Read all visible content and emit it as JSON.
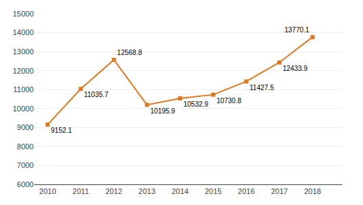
{
  "chart_data": {
    "type": "line",
    "x": [
      2010,
      2011,
      2012,
      2013,
      2014,
      2015,
      2016,
      2017,
      2018
    ],
    "values": [
      9152.1,
      11035.7,
      12568.8,
      10195.9,
      10532.9,
      10730.8,
      11427.5,
      12433.9,
      13770.1
    ],
    "color": "#E07820",
    "marker": "square",
    "xlim": [
      2009.6,
      2018.9
    ],
    "xticks": [
      2010,
      2011,
      2012,
      2013,
      2014,
      2015,
      2016,
      2017,
      2018
    ],
    "ylim": [
      6000,
      15000
    ],
    "yticks": [
      6000,
      7000,
      8000,
      9000,
      10000,
      11000,
      12000,
      13000,
      14000,
      15000
    ],
    "grid": true,
    "data_labels": true
  }
}
